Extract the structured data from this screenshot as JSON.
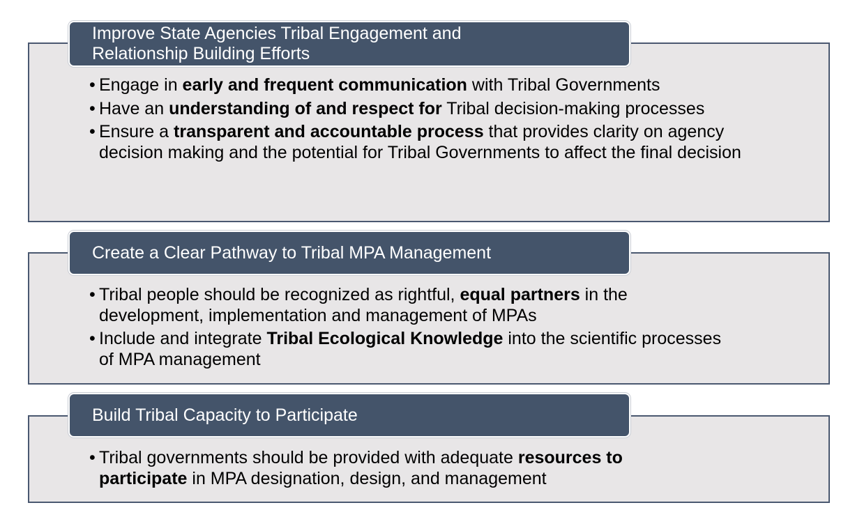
{
  "sections": [
    {
      "title_line1": "Improve State Agencies Tribal Engagement and",
      "title_line2": "Relationship Building Efforts",
      "items": [
        {
          "bullet": "•",
          "pre": "Engage in ",
          "bold": "early and frequent communication",
          "post": " with Tribal Governments"
        },
        {
          "bullet": "•",
          "pre": "Have an ",
          "bold": "understanding of and respect for",
          "post": " Tribal decision-making processes"
        },
        {
          "bullet": "•",
          "pre": "Ensure a ",
          "bold": "transparent and accountable process",
          "post": " that provides clarity on agency decision making and the potential for Tribal Governments to affect the final decision"
        }
      ]
    },
    {
      "title_line1": "Create a Clear Pathway to Tribal MPA Management",
      "items": [
        {
          "bullet": "•",
          "pre": "Tribal people should be recognized as rightful, ",
          "bold": "equal partners",
          "post": " in the development, implementation and management of MPAs"
        },
        {
          "bullet": "•",
          "pre": "Include and integrate ",
          "bold": "Tribal Ecological Knowledge",
          "post": " into the scientific processes of MPA management"
        }
      ]
    },
    {
      "title_line1": "Build Tribal Capacity to Participate",
      "items": [
        {
          "bullet": "•",
          "pre": "Tribal governments should be provided with adequate ",
          "bold": "resources to participate",
          "post": " in MPA designation, design, and management"
        }
      ]
    }
  ],
  "colors": {
    "header_fill": "#44546a",
    "panel_fill": "#e8e6e7",
    "panel_border": "#4a5870"
  }
}
